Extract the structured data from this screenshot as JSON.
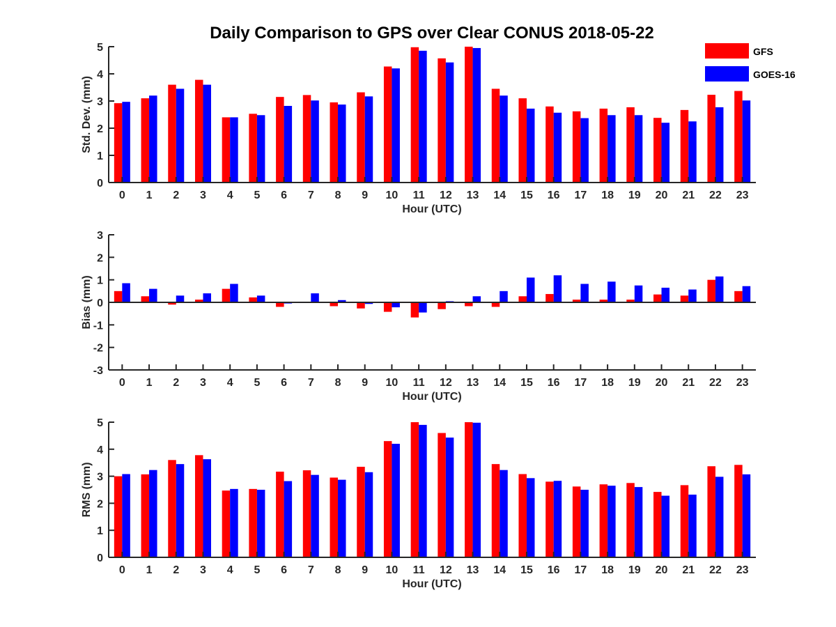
{
  "chart_data": {
    "title": "Daily Comparison to GPS over Clear CONUS 2018-05-22",
    "type": "bar",
    "legend": {
      "placement": "top-right",
      "entries": [
        {
          "name": "GFS",
          "color": "#ff0000"
        },
        {
          "name": "GOES-16",
          "color": "#0000ff"
        }
      ]
    },
    "panels": [
      {
        "id": "std",
        "ylabel": "Std. Dev. (mm)",
        "xlabel": "Hour (UTC)",
        "ylim": [
          0,
          5
        ],
        "yticks": [
          0,
          1,
          2,
          3,
          4,
          5
        ],
        "categories": [
          "0",
          "1",
          "2",
          "3",
          "4",
          "5",
          "6",
          "7",
          "8",
          "9",
          "10",
          "11",
          "12",
          "13",
          "14",
          "15",
          "16",
          "17",
          "18",
          "19",
          "20",
          "21",
          "22",
          "23"
        ],
        "series": [
          {
            "name": "GFS",
            "values": [
              2.92,
              3.1,
              3.6,
              3.78,
              2.4,
              2.53,
              3.15,
              3.22,
              2.95,
              3.32,
              4.27,
              4.98,
              4.57,
              5.0,
              3.45,
              3.1,
              2.8,
              2.62,
              2.72,
              2.77,
              2.38,
              2.67,
              3.23,
              3.37
            ]
          },
          {
            "name": "GOES-16",
            "values": [
              2.97,
              3.2,
              3.45,
              3.6,
              2.4,
              2.48,
              2.82,
              3.02,
              2.87,
              3.17,
              4.2,
              4.85,
              4.42,
              4.95,
              3.2,
              2.72,
              2.57,
              2.37,
              2.48,
              2.48,
              2.2,
              2.25,
              2.77,
              3.02
            ]
          }
        ]
      },
      {
        "id": "bias",
        "ylabel": "Bias (mm)",
        "xlabel": "Hour (UTC)",
        "ylim": [
          -3,
          3
        ],
        "yticks": [
          -3,
          -2,
          -1,
          0,
          1,
          2,
          3
        ],
        "categories": [
          "0",
          "1",
          "2",
          "3",
          "4",
          "5",
          "6",
          "7",
          "8",
          "9",
          "10",
          "11",
          "12",
          "13",
          "14",
          "15",
          "16",
          "17",
          "18",
          "19",
          "20",
          "21",
          "22",
          "23"
        ],
        "series": [
          {
            "name": "GFS",
            "values": [
              0.5,
              0.27,
              -0.1,
              0.12,
              0.6,
              0.22,
              -0.2,
              0.0,
              -0.17,
              -0.27,
              -0.42,
              -0.67,
              -0.3,
              -0.17,
              -0.2,
              0.27,
              0.37,
              0.12,
              0.12,
              0.12,
              0.35,
              0.3,
              1.0,
              0.5
            ]
          },
          {
            "name": "GOES-16",
            "values": [
              0.85,
              0.6,
              0.3,
              0.4,
              0.82,
              0.3,
              -0.05,
              0.4,
              0.1,
              -0.07,
              -0.22,
              -0.45,
              0.05,
              0.27,
              0.5,
              1.1,
              1.2,
              0.82,
              0.92,
              0.75,
              0.65,
              0.57,
              1.15,
              0.72
            ]
          }
        ]
      },
      {
        "id": "rms",
        "ylabel": "RMS (mm)",
        "xlabel": "Hour (UTC)",
        "ylim": [
          0,
          5
        ],
        "yticks": [
          0,
          1,
          2,
          3,
          4,
          5
        ],
        "categories": [
          "0",
          "1",
          "2",
          "3",
          "4",
          "5",
          "6",
          "7",
          "8",
          "9",
          "10",
          "11",
          "12",
          "13",
          "14",
          "15",
          "16",
          "17",
          "18",
          "19",
          "20",
          "21",
          "22",
          "23"
        ],
        "series": [
          {
            "name": "GFS",
            "values": [
              3.0,
              3.07,
              3.6,
              3.78,
              2.47,
              2.53,
              3.17,
              3.22,
              2.95,
              3.35,
              4.3,
              5.0,
              4.6,
              5.0,
              3.45,
              3.08,
              2.8,
              2.62,
              2.7,
              2.75,
              2.42,
              2.67,
              3.37,
              3.42
            ]
          },
          {
            "name": "GOES-16",
            "values": [
              3.08,
              3.23,
              3.45,
              3.63,
              2.53,
              2.5,
              2.82,
              3.05,
              2.87,
              3.15,
              4.2,
              4.9,
              4.43,
              4.98,
              3.23,
              2.93,
              2.83,
              2.5,
              2.65,
              2.6,
              2.28,
              2.32,
              2.98,
              3.07
            ]
          }
        ]
      }
    ]
  }
}
